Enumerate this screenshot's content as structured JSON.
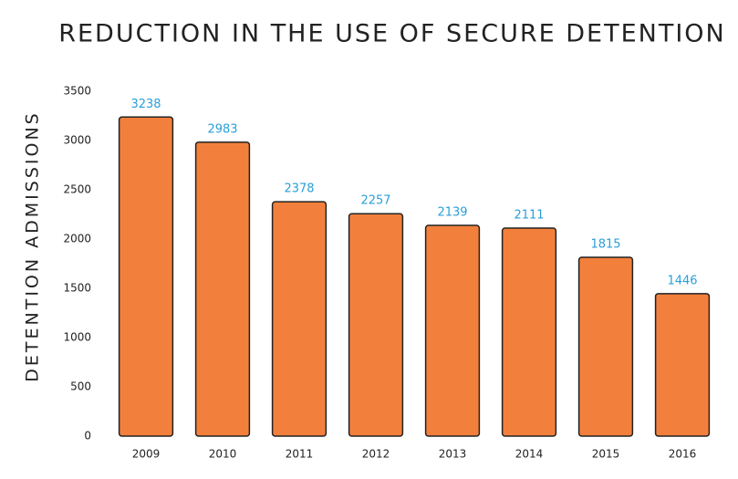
{
  "chart_data": {
    "type": "bar",
    "title": "REDUCTION IN THE USE OF SECURE DETENTION",
    "y_label": "DETENTION ADMISSIONS",
    "categories": [
      "2009",
      "2010",
      "2011",
      "2012",
      "2013",
      "2014",
      "2015",
      "2016"
    ],
    "values": [
      3238,
      2983,
      2378,
      2257,
      2139,
      2111,
      1815,
      1446
    ],
    "color": "#f2803c",
    "label_color": "#2a9fd8",
    "ylim": [
      0,
      3500
    ],
    "yticks": [
      0,
      500,
      1000,
      1500,
      2000,
      2500,
      3000,
      3500
    ],
    "grid": false
  }
}
